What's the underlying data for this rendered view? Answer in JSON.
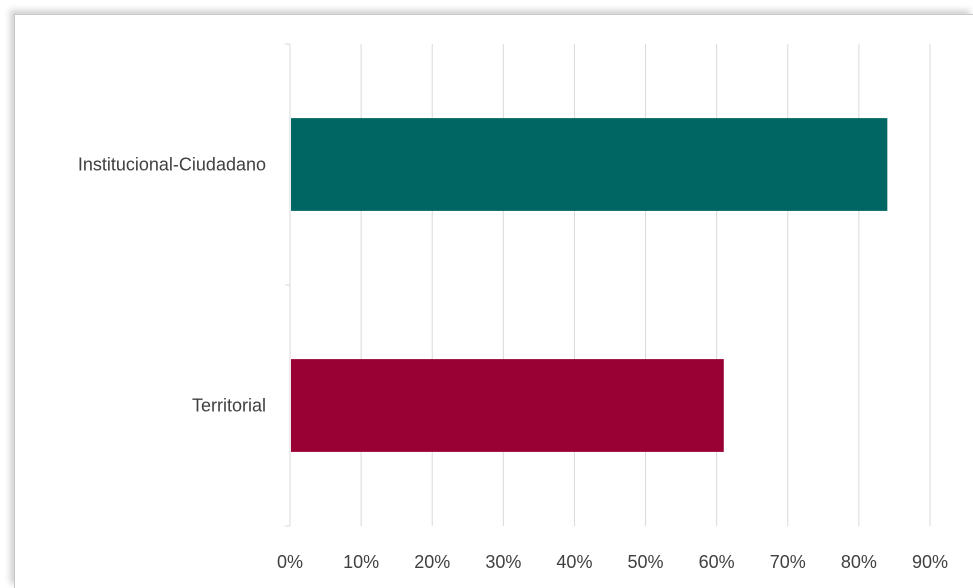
{
  "chart_data": {
    "type": "bar",
    "orientation": "horizontal",
    "categories": [
      "Institucional-Ciudadano",
      "Territorial"
    ],
    "values": [
      0.84,
      0.61
    ],
    "colors": [
      "#006663",
      "#990033"
    ],
    "xlim": [
      0,
      0.9
    ],
    "xticks": [
      "0%",
      "10%",
      "20%",
      "30%",
      "40%",
      "50%",
      "60%",
      "70%",
      "80%",
      "90%"
    ],
    "grid": true,
    "legend": "none"
  }
}
